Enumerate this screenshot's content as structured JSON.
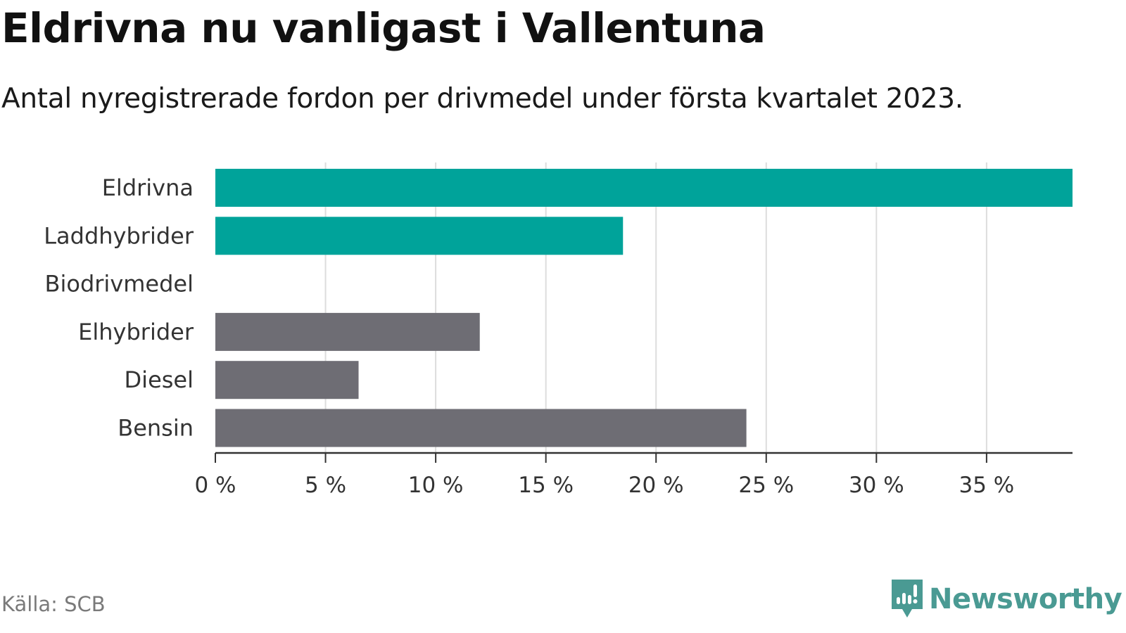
{
  "title": "Eldrivna nu vanligast i Vallentuna",
  "subtitle": "Antal nyregistrerade fordon per drivmedel under första kvartalet 2023.",
  "source": "Källa: SCB",
  "brand": "Newsworthy",
  "colors": {
    "highlight": "#00a39a",
    "default": "#6e6d74",
    "grid": "#dddddd",
    "axis": "#333333",
    "brand": "#4a9a93"
  },
  "chart_data": {
    "type": "bar",
    "orientation": "horizontal",
    "title": "Eldrivna nu vanligast i Vallentuna",
    "subtitle": "Antal nyregistrerade fordon per drivmedel under första kvartalet 2023.",
    "categories": [
      "Eldrivna",
      "Laddhybrider",
      "Biodrivmedel",
      "Elhybrider",
      "Diesel",
      "Bensin"
    ],
    "values": [
      38.9,
      18.5,
      0,
      12.0,
      6.5,
      24.1
    ],
    "highlight": [
      true,
      true,
      false,
      false,
      false,
      false
    ],
    "xlim": [
      0,
      38.9
    ],
    "xticks": [
      0,
      5,
      10,
      15,
      20,
      25,
      30,
      35
    ],
    "tick_labels": [
      "0 %",
      "5 %",
      "10 %",
      "15 %",
      "20 %",
      "25 %",
      "30 %",
      "35 %"
    ],
    "unit": "%",
    "grid": true,
    "xlabel": "",
    "ylabel": ""
  }
}
